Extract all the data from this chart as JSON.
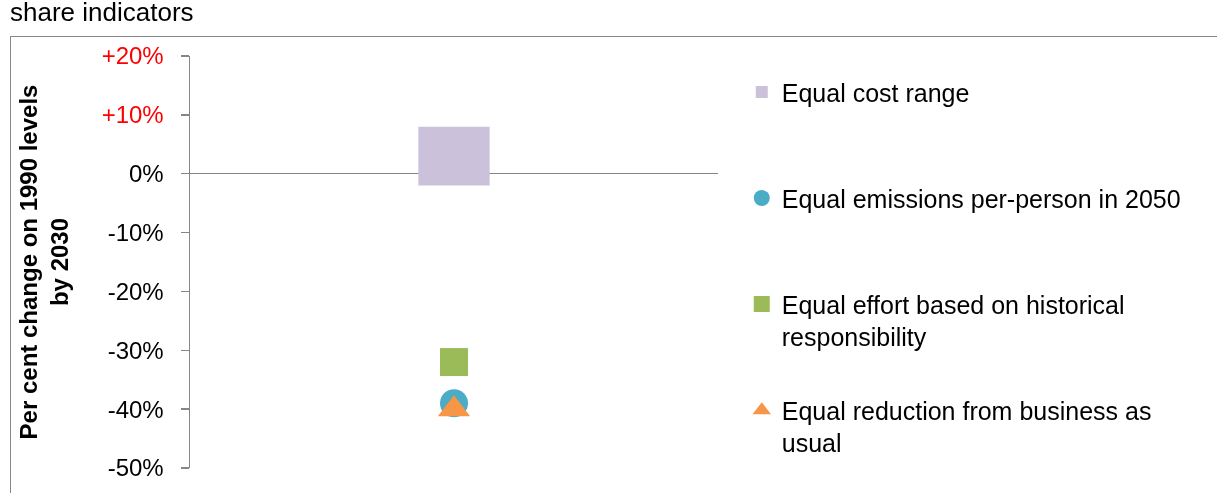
{
  "chart_data": {
    "type": "scatter",
    "title": "share indicators",
    "ylabel": "Per cent change on 1990 levels by 2030",
    "categories": [
      null
    ],
    "ylim": [
      -50,
      20
    ],
    "yticks": [
      {
        "value": 20,
        "label": "+20%"
      },
      {
        "value": 10,
        "label": "+10%"
      },
      {
        "value": 0,
        "label": "0%"
      },
      {
        "value": -10,
        "label": "-10%"
      },
      {
        "value": -20,
        "label": "-20%"
      },
      {
        "value": -30,
        "label": "-30%"
      },
      {
        "value": -40,
        "label": "-40%"
      },
      {
        "value": -50,
        "label": "-50%"
      }
    ],
    "legend": "right",
    "series": [
      {
        "name": "Equal cost range",
        "type": "bar",
        "color": "#ccc1da",
        "base": [
          -2
        ],
        "values": [
          10
        ]
      },
      {
        "name": "Equal emissions per-person in 2050",
        "marker": "circle",
        "color": "#4bacc6",
        "values": [
          -39
        ]
      },
      {
        "name": "Equal effort based on historical responsibility",
        "marker": "square",
        "color": "#9bbb59",
        "values": [
          -32
        ]
      },
      {
        "name": "Equal reduction from business as usual",
        "marker": "triangle",
        "color": "#f79646",
        "values": [
          -40
        ]
      }
    ]
  }
}
